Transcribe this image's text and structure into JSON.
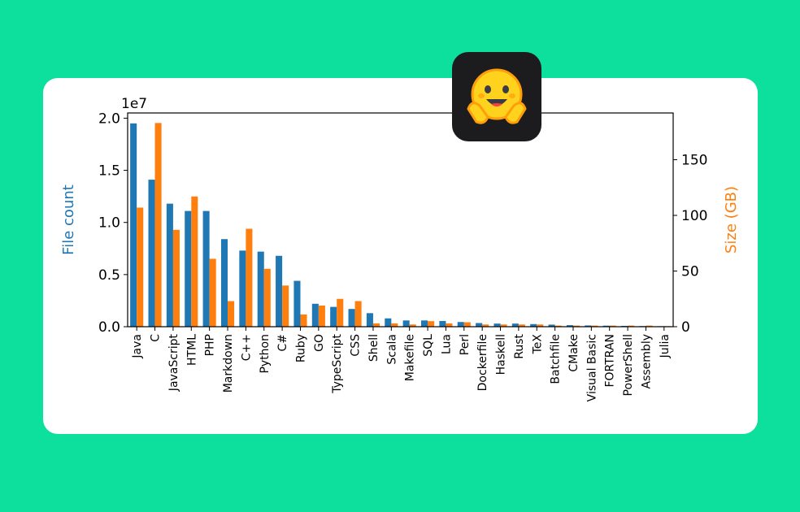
{
  "chart_data": {
    "type": "bar",
    "title": "",
    "categories": [
      "Java",
      "C",
      "JavaScript",
      "HTML",
      "PHP",
      "Markdown",
      "C++",
      "Python",
      "C#",
      "Ruby",
      "GO",
      "TypeScript",
      "CSS",
      "Shell",
      "Scala",
      "Makefile",
      "SQL",
      "Lua",
      "Perl",
      "Dockerfile",
      "Haskell",
      "Rust",
      "TeX",
      "Batchfile",
      "CMake",
      "Visual Basic",
      "FORTRAN",
      "PowerShell",
      "Assembly",
      "Julia"
    ],
    "series": [
      {
        "name": "File count",
        "axis": "left",
        "color": "#1f77b4",
        "values": [
          19.5,
          14.1,
          11.8,
          11.1,
          11.1,
          8.4,
          7.3,
          7.2,
          6.8,
          4.4,
          2.2,
          1.9,
          1.7,
          1.3,
          0.8,
          0.6,
          0.6,
          0.55,
          0.45,
          0.35,
          0.3,
          0.3,
          0.25,
          0.2,
          0.15,
          0.12,
          0.1,
          0.08,
          0.06,
          0.05
        ]
      },
      {
        "name": "Size (GB)",
        "axis": "right",
        "color": "#ff7f0e",
        "values": [
          107,
          183,
          87,
          117,
          61,
          23,
          88,
          52,
          37,
          11,
          19,
          25,
          23,
          3,
          3,
          2,
          5,
          3,
          4,
          2,
          2,
          2,
          2,
          1,
          1,
          1,
          1,
          1,
          1,
          0.5
        ]
      }
    ],
    "left_axis": {
      "label": "File count",
      "ylim": [
        0,
        20.5
      ],
      "ticks": [
        "0.0",
        "0.5",
        "1.0",
        "1.5",
        "2.0"
      ],
      "tick_values": [
        0,
        5,
        10,
        15,
        20
      ],
      "multiplier": "1e7",
      "color": "#1f77b4"
    },
    "right_axis": {
      "label": "Size (GB)",
      "ylim": [
        0,
        192
      ],
      "ticks": [
        "0",
        "50",
        "100",
        "150"
      ],
      "tick_values": [
        0,
        50,
        100,
        150
      ],
      "color": "#ff7f0e"
    },
    "grid": false,
    "legend": "none"
  },
  "logo": {
    "icon": "hugging-face-emoji-icon"
  }
}
